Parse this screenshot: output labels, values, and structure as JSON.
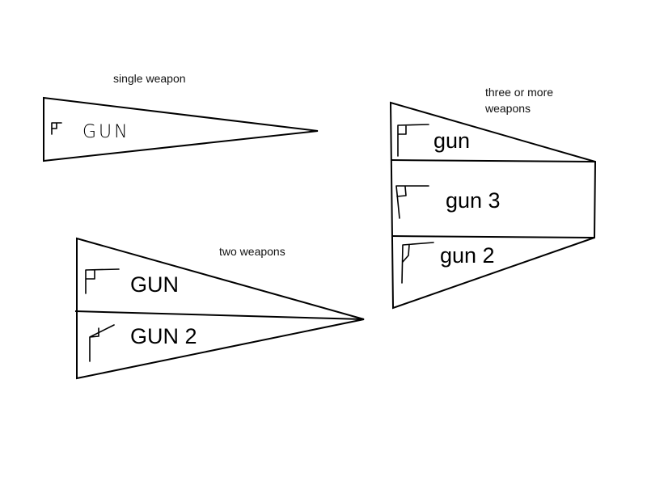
{
  "captions": {
    "single": "single weapon",
    "two": "two weapons",
    "three_line1": "three or more",
    "three_line2": "weapons"
  },
  "single": {
    "slot_label": "GUN"
  },
  "two": {
    "slots": [
      "GUN",
      "GUN 2"
    ]
  },
  "three": {
    "slots": [
      "gun",
      "gun 3",
      "gun 2"
    ]
  },
  "icons": {
    "weapon": "gun-icon"
  }
}
